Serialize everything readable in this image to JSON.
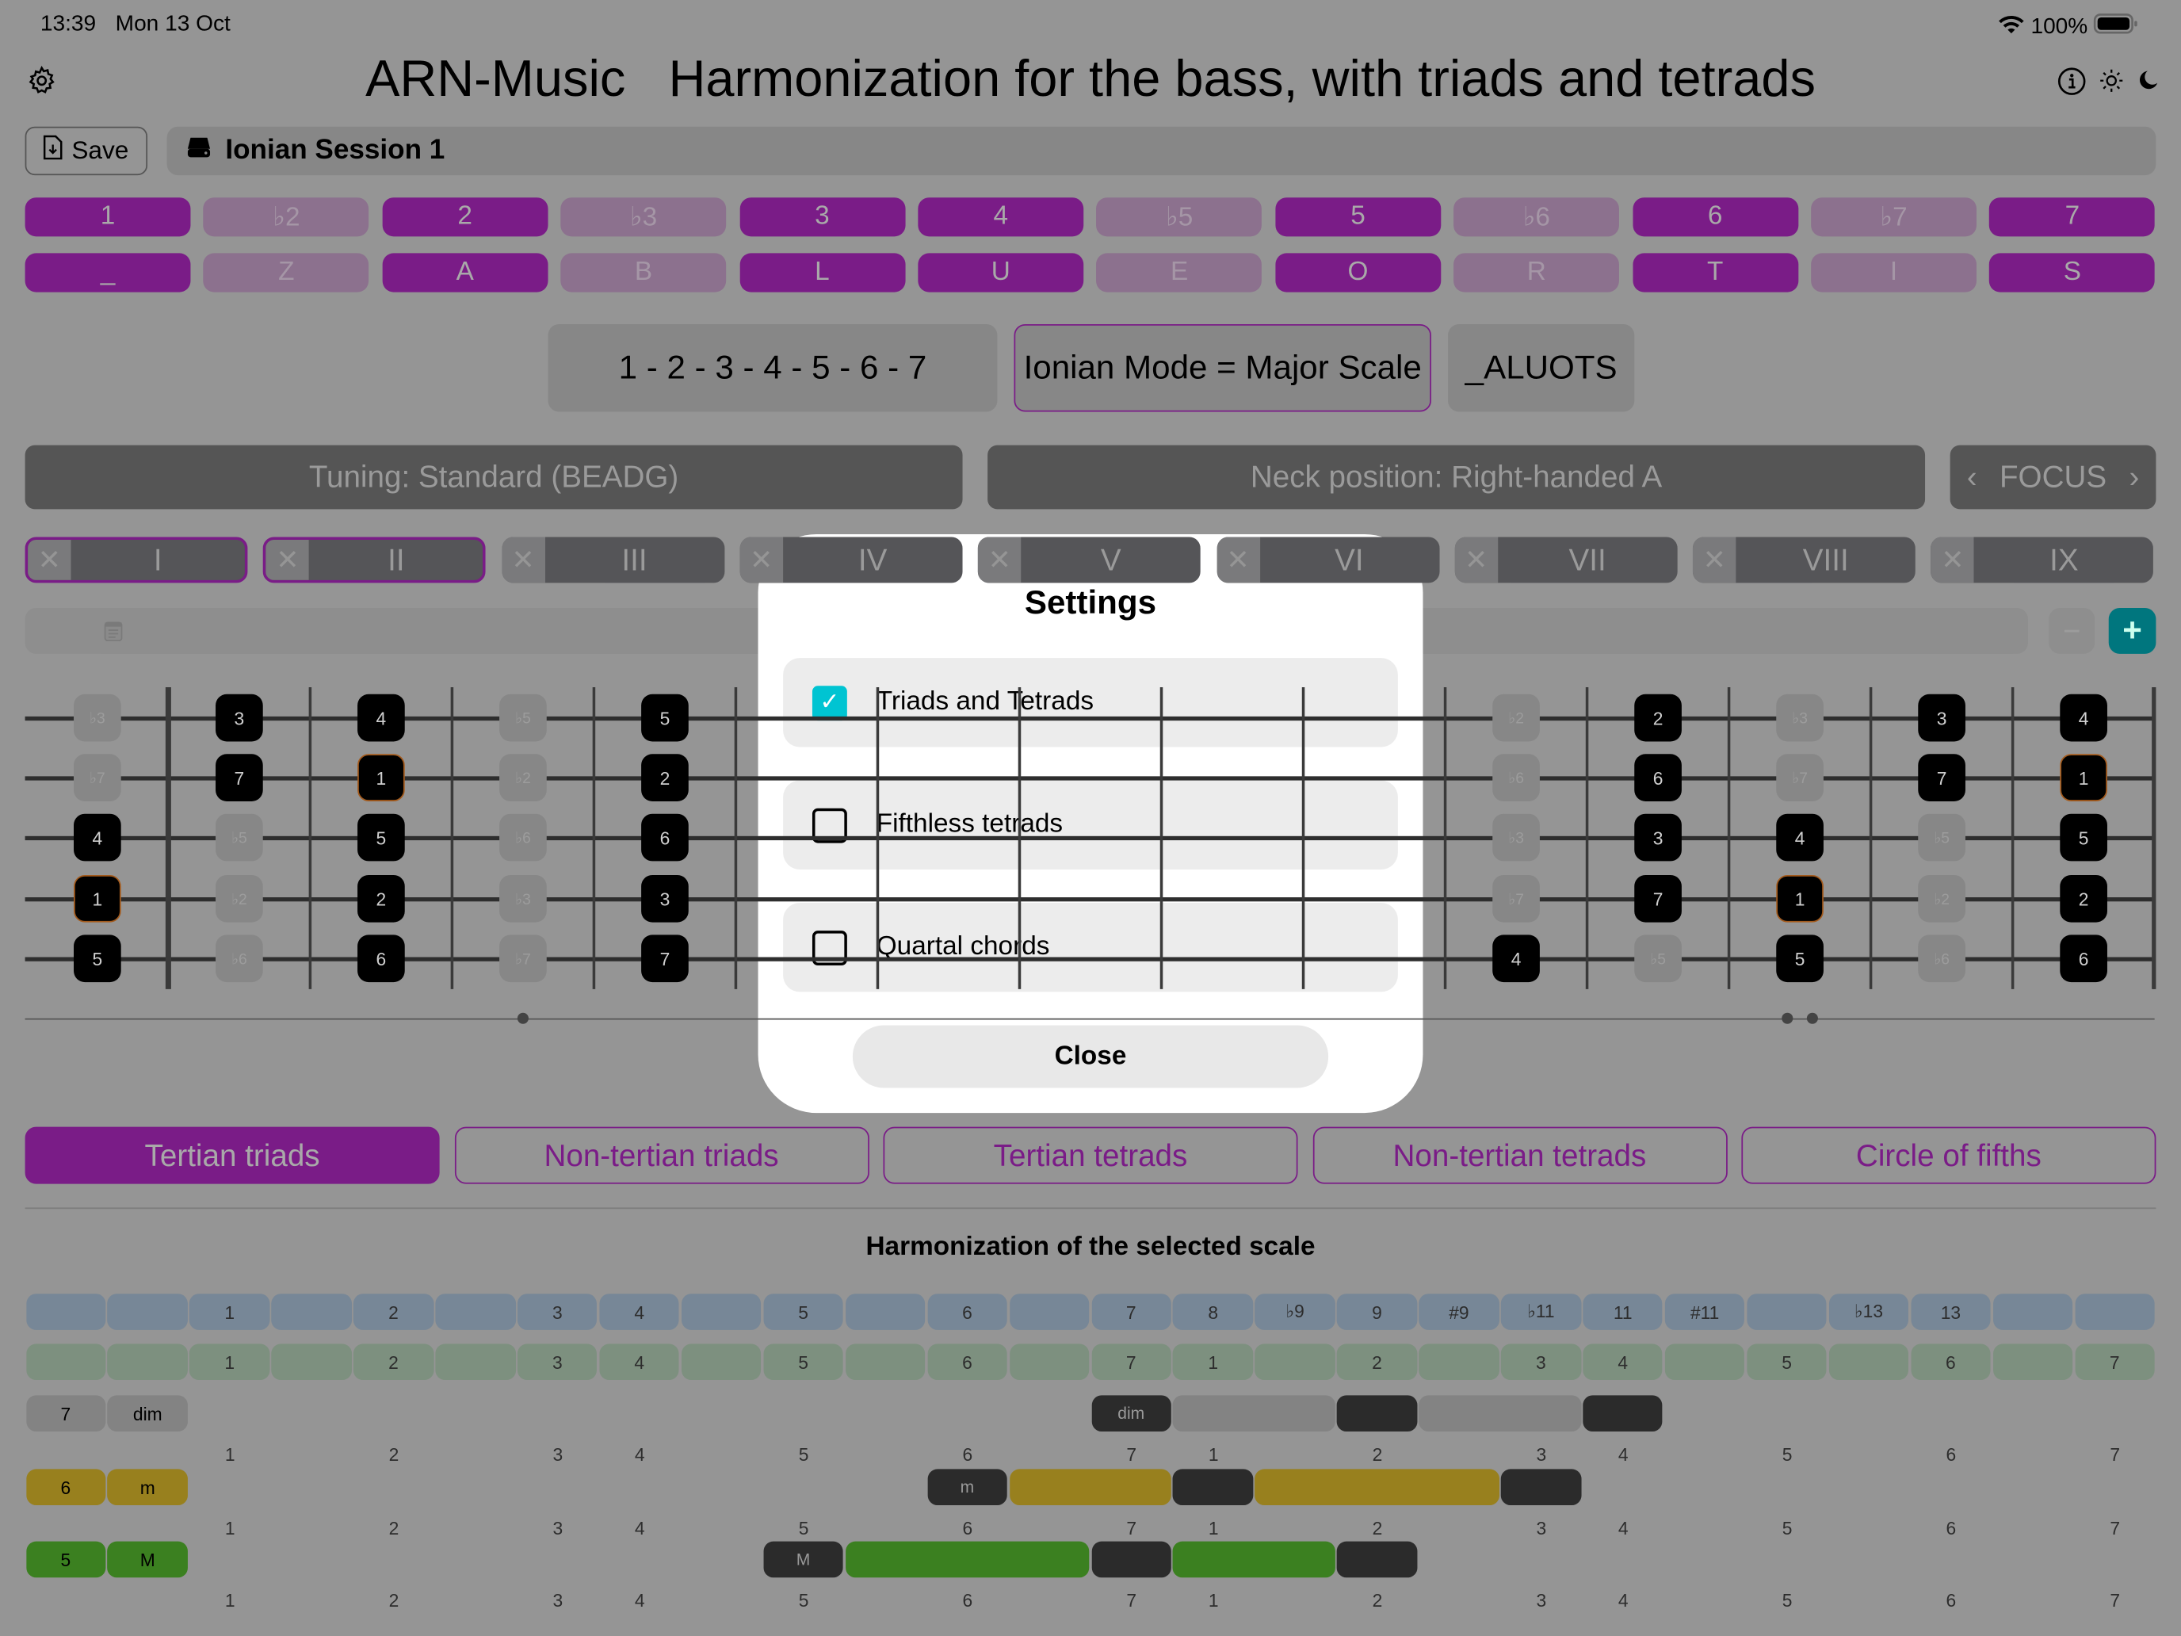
{
  "status_bar": {
    "time": "13:39",
    "date": "Mon 13 Oct",
    "battery": "100%"
  },
  "header": {
    "app": "ARN-Music",
    "title": "Harmonization for the bass, with triads and tetrads"
  },
  "toolbar": {
    "save_label": "Save",
    "session_name": "Ionian Session 1"
  },
  "degrees": [
    {
      "label": "1",
      "letter": "_",
      "on": true
    },
    {
      "label": "♭2",
      "letter": "Z",
      "on": false
    },
    {
      "label": "2",
      "letter": "A",
      "on": true
    },
    {
      "label": "♭3",
      "letter": "B",
      "on": false
    },
    {
      "label": "3",
      "letter": "L",
      "on": true
    },
    {
      "label": "4",
      "letter": "U",
      "on": true
    },
    {
      "label": "♭5",
      "letter": "E",
      "on": false
    },
    {
      "label": "5",
      "letter": "O",
      "on": true
    },
    {
      "label": "♭6",
      "letter": "R",
      "on": false
    },
    {
      "label": "6",
      "letter": "T",
      "on": true
    },
    {
      "label": "♭7",
      "letter": "I",
      "on": false
    },
    {
      "label": "7",
      "letter": "S",
      "on": true
    }
  ],
  "scale": {
    "formula": "1 - 2 - 3 - 4 - 5 - 6 - 7",
    "mode": "Ionian Mode = Major Scale",
    "code": "_ALUOTS"
  },
  "tuning": "Tuning: Standard (BEADG)",
  "neck": "Neck position: Right-handed A",
  "focus": "FOCUS",
  "positions": [
    {
      "label": "I",
      "selected": true
    },
    {
      "label": "II",
      "selected": true
    },
    {
      "label": "III",
      "selected": false
    },
    {
      "label": "IV",
      "selected": false
    },
    {
      "label": "V",
      "selected": false
    },
    {
      "label": "VI",
      "selected": false
    },
    {
      "label": "VII",
      "selected": false
    },
    {
      "label": "VIII",
      "selected": false
    },
    {
      "label": "IX",
      "selected": false
    }
  ],
  "fretboard": {
    "columns": [
      {
        "fret": 0,
        "notes": [
          "♭3",
          "♭7",
          "4",
          "1",
          "5"
        ]
      },
      {
        "fret": 1,
        "notes": [
          "3",
          "7",
          "♭5",
          "♭2",
          "♭6"
        ]
      },
      {
        "fret": 2,
        "notes": [
          "4",
          "1",
          "5",
          "2",
          "6"
        ]
      },
      {
        "fret": 3,
        "notes": [
          "♭5",
          "♭2",
          "♭6",
          "♭3",
          "♭7"
        ]
      },
      {
        "fret": 4,
        "notes": [
          "5",
          "2",
          "6",
          "3",
          "7"
        ]
      },
      {
        "fret": 10,
        "notes": [
          "♭2",
          "♭6",
          "♭3",
          "♭7",
          "4"
        ]
      },
      {
        "fret": 11,
        "notes": [
          "2",
          "6",
          "3",
          "7",
          "♭5"
        ]
      },
      {
        "fret": 12,
        "notes": [
          "♭3",
          "♭7",
          "4",
          "1",
          "5"
        ]
      },
      {
        "fret": 13,
        "notes": [
          "3",
          "7",
          "♭5",
          "♭2",
          "♭6"
        ]
      },
      {
        "fret": 14,
        "notes": [
          "4",
          "1",
          "5",
          "2",
          "6"
        ]
      }
    ],
    "scale_degrees": [
      "1",
      "2",
      "3",
      "4",
      "5",
      "6",
      "7"
    ],
    "root": "1",
    "root_color": "#a35a1c",
    "single_dot_frets": [
      3
    ],
    "double_dot_frets": [
      12
    ]
  },
  "tabs": [
    {
      "label": "Tertian triads",
      "active": true
    },
    {
      "label": "Non-tertian triads",
      "active": false
    },
    {
      "label": "Tertian tetrads",
      "active": false
    },
    {
      "label": "Non-tertian tetrads",
      "active": false
    },
    {
      "label": "Circle of fifths",
      "active": false
    }
  ],
  "harmonization": {
    "title": "Harmonization of the selected scale",
    "interval_row": [
      "",
      "",
      "1",
      "",
      "2",
      "",
      "3",
      "4",
      "",
      "5",
      "",
      "6",
      "",
      "7",
      "8",
      "♭9",
      "9",
      "#9",
      "♭11",
      "11",
      "#11",
      "",
      "♭13",
      "13",
      "",
      ""
    ],
    "degree_row": [
      "",
      "",
      "1",
      "",
      "2",
      "",
      "3",
      "4",
      "",
      "5",
      "",
      "6",
      "",
      "7",
      "1",
      "",
      "2",
      "",
      "3",
      "4",
      "",
      "5",
      "",
      "6",
      "",
      "7"
    ],
    "chords": [
      {
        "degree": "7",
        "quality": "dim",
        "color": "#838383",
        "segments": [
          {
            "from": 13,
            "to": 13,
            "kind": "root",
            "label": "dim"
          },
          {
            "from": 14,
            "to": 15,
            "kind": "fill"
          },
          {
            "from": 16,
            "to": 16,
            "kind": "root"
          },
          {
            "from": 17,
            "to": 18,
            "kind": "fill"
          },
          {
            "from": 19,
            "to": 19,
            "kind": "root"
          }
        ]
      },
      {
        "degree": "6",
        "quality": "m",
        "color": "#98801e",
        "segments": [
          {
            "from": 11,
            "to": 11,
            "kind": "root",
            "label": "m"
          },
          {
            "from": 12,
            "to": 13,
            "kind": "fill"
          },
          {
            "from": 14,
            "to": 14,
            "kind": "root"
          },
          {
            "from": 15,
            "to": 17,
            "kind": "fill"
          },
          {
            "from": 18,
            "to": 18,
            "kind": "root"
          }
        ]
      },
      {
        "degree": "5",
        "quality": "M",
        "color": "#3b8020",
        "segments": [
          {
            "from": 9,
            "to": 9,
            "kind": "root",
            "label": "M"
          },
          {
            "from": 10,
            "to": 12,
            "kind": "fill"
          },
          {
            "from": 13,
            "to": 13,
            "kind": "root"
          },
          {
            "from": 14,
            "to": 15,
            "kind": "fill"
          },
          {
            "from": 16,
            "to": 16,
            "kind": "root"
          }
        ]
      }
    ]
  },
  "settings": {
    "title": "Settings",
    "options": [
      {
        "label": "Triads and Tetrads",
        "checked": true
      },
      {
        "label": "Fifthless tetrads",
        "checked": false
      },
      {
        "label": "Quartal chords",
        "checked": false
      }
    ],
    "close_label": "Close"
  },
  "colors": {
    "accent": "#7a1c87",
    "teal": "#00c4d2",
    "plus_button": "#00767e",
    "interval_row": "#778797",
    "degree_row": "#7d907f"
  }
}
